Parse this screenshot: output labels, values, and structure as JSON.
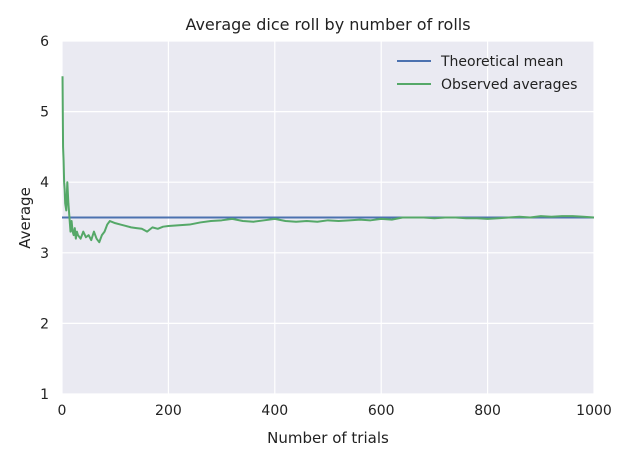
{
  "chart_data": {
    "type": "line",
    "title": "Average dice roll by number of rolls",
    "xlabel": "Number of trials",
    "ylabel": "Average",
    "xlim": [
      0,
      1000
    ],
    "ylim": [
      1,
      6
    ],
    "xticks": [
      0,
      200,
      400,
      600,
      800,
      1000
    ],
    "yticks": [
      1,
      2,
      3,
      4,
      5,
      6
    ],
    "grid": true,
    "legend_position": "top-right",
    "background": "#eaeaf2",
    "series": [
      {
        "name": "Theoretical mean",
        "color": "#4c72b0",
        "x": [
          0,
          1000
        ],
        "y": [
          3.5,
          3.5
        ]
      },
      {
        "name": "Observed averages",
        "color": "#55a868",
        "x": [
          1,
          2,
          3,
          4,
          5,
          6,
          8,
          10,
          12,
          14,
          16,
          18,
          20,
          22,
          24,
          26,
          28,
          30,
          35,
          40,
          45,
          50,
          55,
          60,
          65,
          70,
          75,
          80,
          85,
          90,
          100,
          110,
          120,
          130,
          140,
          150,
          160,
          170,
          180,
          190,
          200,
          220,
          240,
          260,
          280,
          300,
          320,
          340,
          360,
          380,
          400,
          420,
          440,
          460,
          480,
          500,
          520,
          540,
          560,
          580,
          600,
          620,
          640,
          660,
          680,
          700,
          720,
          740,
          760,
          780,
          800,
          820,
          840,
          860,
          880,
          900,
          920,
          940,
          960,
          980,
          1000
        ],
        "y": [
          5.5,
          4.5,
          4.3,
          4.0,
          3.9,
          3.7,
          3.6,
          4.0,
          3.7,
          3.5,
          3.3,
          3.45,
          3.3,
          3.25,
          3.35,
          3.2,
          3.3,
          3.25,
          3.2,
          3.3,
          3.22,
          3.25,
          3.18,
          3.3,
          3.2,
          3.15,
          3.25,
          3.3,
          3.4,
          3.45,
          3.42,
          3.4,
          3.38,
          3.36,
          3.35,
          3.34,
          3.3,
          3.36,
          3.34,
          3.37,
          3.38,
          3.39,
          3.4,
          3.43,
          3.45,
          3.46,
          3.48,
          3.45,
          3.44,
          3.46,
          3.48,
          3.45,
          3.44,
          3.45,
          3.44,
          3.46,
          3.45,
          3.46,
          3.47,
          3.46,
          3.48,
          3.47,
          3.5,
          3.5,
          3.5,
          3.49,
          3.5,
          3.5,
          3.49,
          3.49,
          3.48,
          3.49,
          3.5,
          3.51,
          3.5,
          3.52,
          3.51,
          3.52,
          3.52,
          3.51,
          3.5
        ]
      }
    ]
  }
}
